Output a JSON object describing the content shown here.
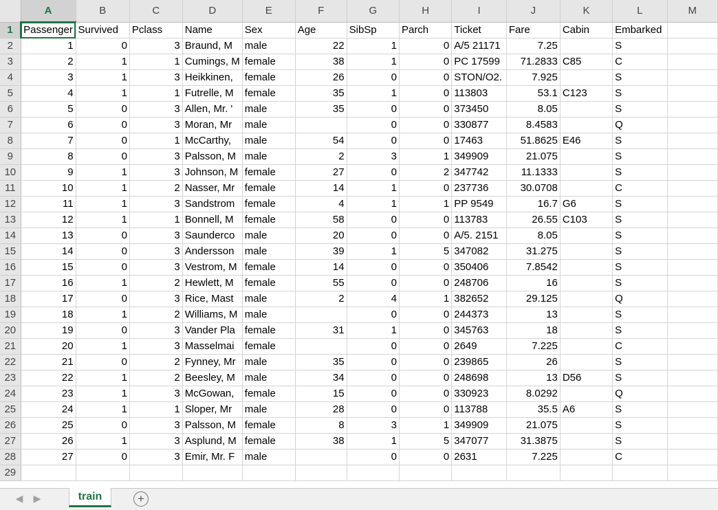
{
  "columns": [
    "A",
    "B",
    "C",
    "D",
    "E",
    "F",
    "G",
    "H",
    "I",
    "J",
    "K",
    "L",
    "M"
  ],
  "active_column": "A",
  "active_row": 1,
  "headers": [
    "PassengerId",
    "Survived",
    "Pclass",
    "Name",
    "Sex",
    "Age",
    "SibSp",
    "Parch",
    "Ticket",
    "Fare",
    "Cabin",
    "Embarked",
    ""
  ],
  "header_display": [
    "Passenger",
    "Survived",
    "Pclass",
    "Name",
    "Sex",
    "Age",
    "SibSp",
    "Parch",
    "Ticket",
    "Fare",
    "Cabin",
    "Embarked",
    ""
  ],
  "rows": [
    [
      "1",
      "0",
      "3",
      "Braund, M",
      "male",
      "22",
      "1",
      "0",
      "A/5 21171",
      "7.25",
      "",
      "S"
    ],
    [
      "2",
      "1",
      "1",
      "Cumings, M",
      "female",
      "38",
      "1",
      "0",
      "PC 17599",
      "71.2833",
      "C85",
      "C"
    ],
    [
      "3",
      "1",
      "3",
      "Heikkinen,",
      "female",
      "26",
      "0",
      "0",
      "STON/O2.",
      "7.925",
      "",
      "S"
    ],
    [
      "4",
      "1",
      "1",
      "Futrelle, M",
      "female",
      "35",
      "1",
      "0",
      "113803",
      "53.1",
      "C123",
      "S"
    ],
    [
      "5",
      "0",
      "3",
      "Allen, Mr. '",
      "male",
      "35",
      "0",
      "0",
      "373450",
      "8.05",
      "",
      "S"
    ],
    [
      "6",
      "0",
      "3",
      "Moran, Mr",
      "male",
      "",
      "0",
      "0",
      "330877",
      "8.4583",
      "",
      "Q"
    ],
    [
      "7",
      "0",
      "1",
      "McCarthy,",
      "male",
      "54",
      "0",
      "0",
      "17463",
      "51.8625",
      "E46",
      "S"
    ],
    [
      "8",
      "0",
      "3",
      "Palsson, M",
      "male",
      "2",
      "3",
      "1",
      "349909",
      "21.075",
      "",
      "S"
    ],
    [
      "9",
      "1",
      "3",
      "Johnson, M",
      "female",
      "27",
      "0",
      "2",
      "347742",
      "11.1333",
      "",
      "S"
    ],
    [
      "10",
      "1",
      "2",
      "Nasser, Mr",
      "female",
      "14",
      "1",
      "0",
      "237736",
      "30.0708",
      "",
      "C"
    ],
    [
      "11",
      "1",
      "3",
      "Sandstrom",
      "female",
      "4",
      "1",
      "1",
      "PP 9549",
      "16.7",
      "G6",
      "S"
    ],
    [
      "12",
      "1",
      "1",
      "Bonnell, M",
      "female",
      "58",
      "0",
      "0",
      "113783",
      "26.55",
      "C103",
      "S"
    ],
    [
      "13",
      "0",
      "3",
      "Saunderco",
      "male",
      "20",
      "0",
      "0",
      "A/5. 2151",
      "8.05",
      "",
      "S"
    ],
    [
      "14",
      "0",
      "3",
      "Andersson",
      "male",
      "39",
      "1",
      "5",
      "347082",
      "31.275",
      "",
      "S"
    ],
    [
      "15",
      "0",
      "3",
      "Vestrom, M",
      "female",
      "14",
      "0",
      "0",
      "350406",
      "7.8542",
      "",
      "S"
    ],
    [
      "16",
      "1",
      "2",
      "Hewlett, M",
      "female",
      "55",
      "0",
      "0",
      "248706",
      "16",
      "",
      "S"
    ],
    [
      "17",
      "0",
      "3",
      "Rice, Mast",
      "male",
      "2",
      "4",
      "1",
      "382652",
      "29.125",
      "",
      "Q"
    ],
    [
      "18",
      "1",
      "2",
      "Williams, M",
      "male",
      "",
      "0",
      "0",
      "244373",
      "13",
      "",
      "S"
    ],
    [
      "19",
      "0",
      "3",
      "Vander Pla",
      "female",
      "31",
      "1",
      "0",
      "345763",
      "18",
      "",
      "S"
    ],
    [
      "20",
      "1",
      "3",
      "Masselmai",
      "female",
      "",
      "0",
      "0",
      "2649",
      "7.225",
      "",
      "C"
    ],
    [
      "21",
      "0",
      "2",
      "Fynney, Mr",
      "male",
      "35",
      "0",
      "0",
      "239865",
      "26",
      "",
      "S"
    ],
    [
      "22",
      "1",
      "2",
      "Beesley, M",
      "male",
      "34",
      "0",
      "0",
      "248698",
      "13",
      "D56",
      "S"
    ],
    [
      "23",
      "1",
      "3",
      "McGowan,",
      "female",
      "15",
      "0",
      "0",
      "330923",
      "8.0292",
      "",
      "Q"
    ],
    [
      "24",
      "1",
      "1",
      "Sloper, Mr",
      "male",
      "28",
      "0",
      "0",
      "113788",
      "35.5",
      "A6",
      "S"
    ],
    [
      "25",
      "0",
      "3",
      "Palsson, M",
      "female",
      "8",
      "3",
      "1",
      "349909",
      "21.075",
      "",
      "S"
    ],
    [
      "26",
      "1",
      "3",
      "Asplund, M",
      "female",
      "38",
      "1",
      "5",
      "347077",
      "31.3875",
      "",
      "S"
    ],
    [
      "27",
      "0",
      "3",
      "Emir, Mr. F",
      "male",
      "",
      "0",
      "0",
      "2631",
      "7.225",
      "",
      "C"
    ]
  ],
  "numeric_columns": [
    0,
    1,
    2,
    5,
    6,
    7,
    9
  ],
  "sheet_tabs": [
    {
      "label": "train",
      "active": true
    }
  ],
  "add_sheet_label": "+",
  "nav": {
    "prev": "◀",
    "next": "▶"
  },
  "colors": {
    "accent": "#217346",
    "header_bg": "#e6e6e6",
    "grid": "#d4d4d4"
  }
}
